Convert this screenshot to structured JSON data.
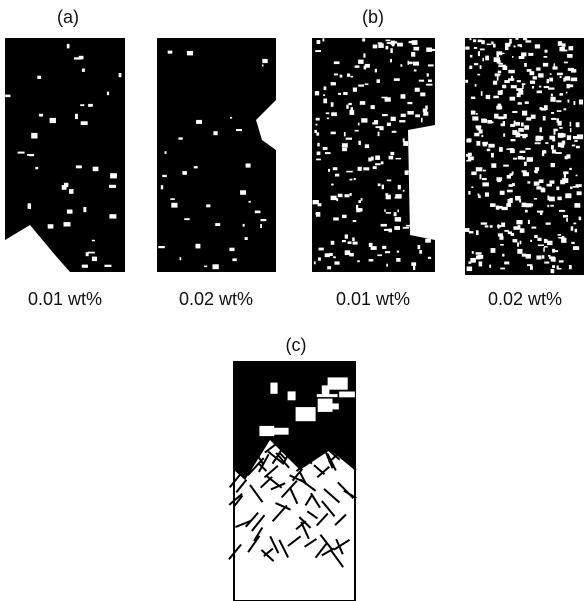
{
  "groups": [
    {
      "label": "(a)",
      "images": [
        {
          "caption": "0.01 wt%"
        },
        {
          "caption": "0.02 wt%"
        }
      ]
    },
    {
      "label": "(b)",
      "images": [
        {
          "caption": "0.01 wt%"
        },
        {
          "caption": "0.02 wt%"
        }
      ]
    },
    {
      "label": "(c)"
    }
  ]
}
